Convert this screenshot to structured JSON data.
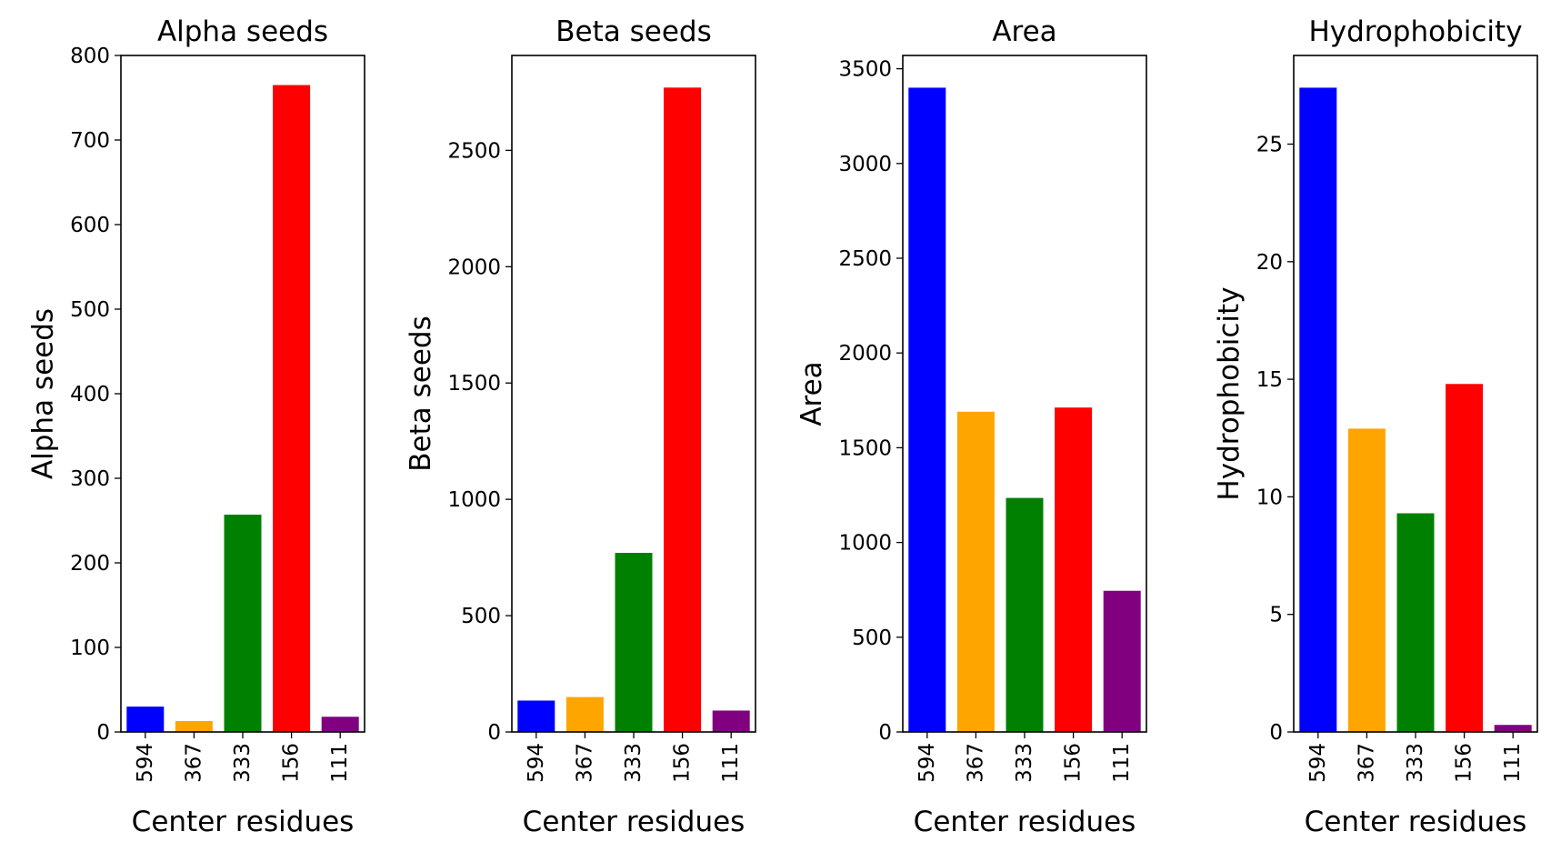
{
  "chart_data": [
    {
      "type": "bar",
      "title": "Alpha seeds",
      "xlabel": "Center residues",
      "ylabel": "Alpha seeds",
      "categories": [
        "594",
        "367",
        "333",
        "156",
        "111"
      ],
      "values": [
        30,
        13,
        257,
        765,
        18
      ],
      "colors": [
        "#0000ff",
        "#ffa500",
        "#008000",
        "#ff0000",
        "#800080"
      ],
      "ylim": [
        0,
        800
      ],
      "yticks": [
        0,
        100,
        200,
        300,
        400,
        500,
        600,
        700,
        800
      ],
      "grid": false
    },
    {
      "type": "bar",
      "title": "Beta seeds",
      "xlabel": "Center residues",
      "ylabel": "Beta seeds",
      "categories": [
        "594",
        "367",
        "333",
        "156",
        "111"
      ],
      "values": [
        135,
        150,
        770,
        2770,
        92
      ],
      "colors": [
        "#0000ff",
        "#ffa500",
        "#008000",
        "#ff0000",
        "#800080"
      ],
      "ylim": [
        0,
        2908
      ],
      "yticks": [
        0,
        500,
        1000,
        1500,
        2000,
        2500
      ],
      "grid": false
    },
    {
      "type": "bar",
      "title": "Area",
      "xlabel": "Center residues",
      "ylabel": "Area",
      "categories": [
        "594",
        "367",
        "333",
        "156",
        "111"
      ],
      "values": [
        3400,
        1690,
        1235,
        1712,
        745
      ],
      "colors": [
        "#0000ff",
        "#ffa500",
        "#008000",
        "#ff0000",
        "#800080"
      ],
      "ylim": [
        0,
        3570
      ],
      "yticks": [
        0,
        500,
        1000,
        1500,
        2000,
        2500,
        3000,
        3500
      ],
      "grid": false
    },
    {
      "type": "bar",
      "title": "Hydrophobicity",
      "xlabel": "Center residues",
      "ylabel": "Hydrophobicity",
      "categories": [
        "594",
        "367",
        "333",
        "156",
        "111"
      ],
      "values": [
        27.4,
        12.9,
        9.3,
        14.8,
        0.3
      ],
      "colors": [
        "#0000ff",
        "#ffa500",
        "#008000",
        "#ff0000",
        "#800080"
      ],
      "ylim": [
        0,
        28.77
      ],
      "yticks": [
        0,
        5,
        10,
        15,
        20,
        25
      ],
      "grid": false
    }
  ]
}
